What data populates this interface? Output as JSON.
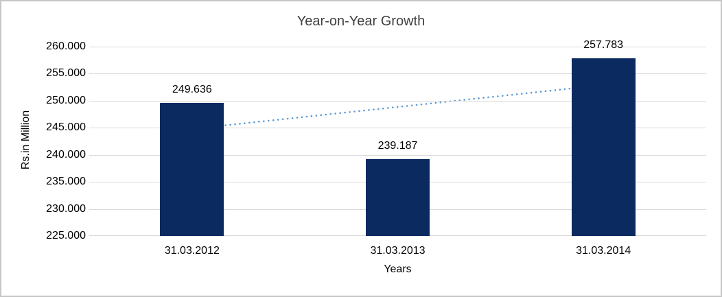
{
  "chart_data": {
    "type": "bar",
    "title": "Year-on-Year Growth",
    "xlabel": "Years",
    "ylabel": "Rs.in Million",
    "categories": [
      "31.03.2012",
      "31.03.2013",
      "31.03.2014"
    ],
    "values": [
      249.636,
      239.187,
      257.783
    ],
    "data_labels": [
      "249.636",
      "239.187",
      "257.783"
    ],
    "ylim": [
      225,
      260
    ],
    "ytick_step": 5,
    "ytick_labels": [
      "225.000",
      "230.000",
      "235.000",
      "240.000",
      "245.000",
      "250.000",
      "255.000",
      "260.000"
    ],
    "grid": true,
    "legend": "none",
    "bar_color": "#0a2a60",
    "trendline": {
      "style": "dotted",
      "color": "#5b9bd5",
      "start_value": 244.8,
      "end_value": 252.9
    }
  }
}
